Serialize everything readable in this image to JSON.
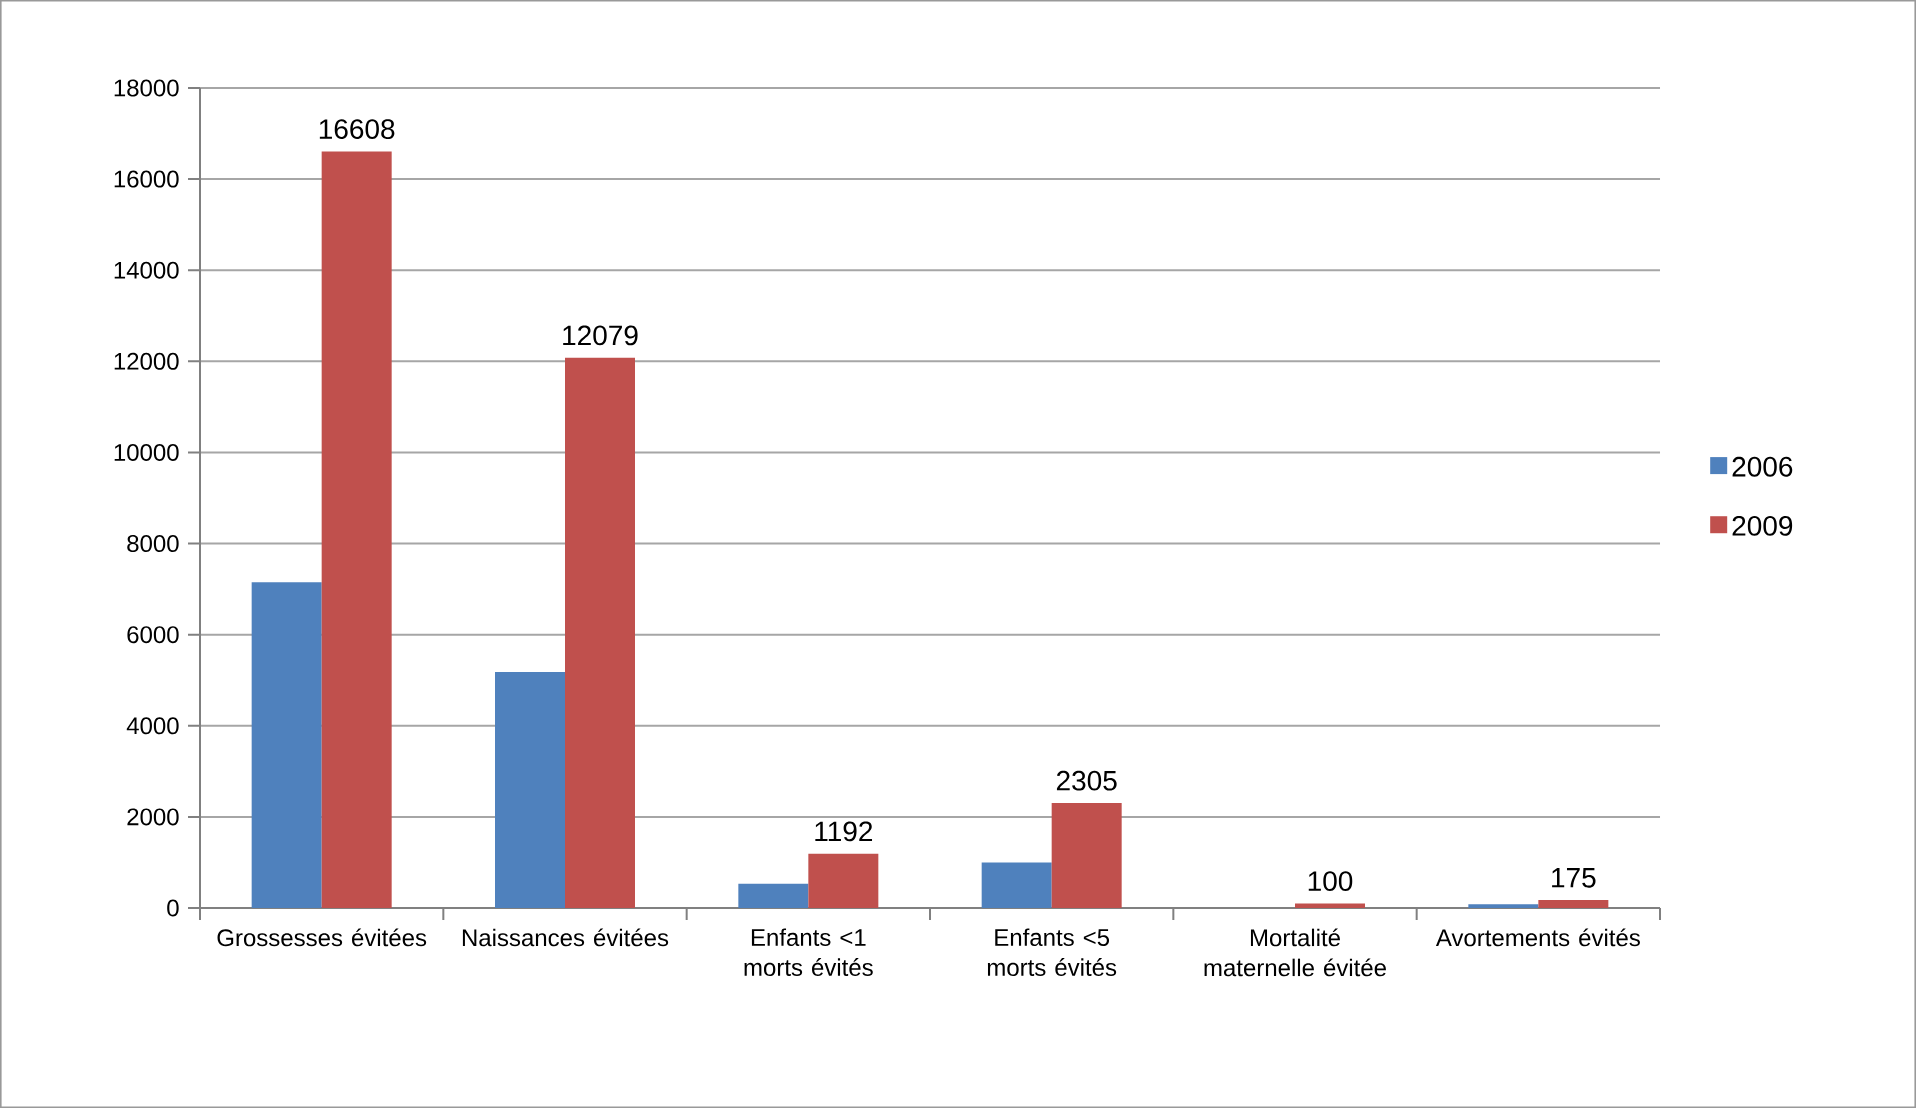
{
  "chart_data": {
    "type": "bar",
    "categories": [
      "Grossesses évitées",
      "Naissances évitées",
      "Enfants <1 morts évités",
      "Enfants <5 morts évités",
      "Mortalité maternelle évitée",
      "Avortements évités"
    ],
    "series": [
      {
        "name": "2006",
        "color": "#4f81bd",
        "values": [
          7150,
          5180,
          530,
          1000,
          0,
          80
        ]
      },
      {
        "name": "2009",
        "color": "#c0504d",
        "values": [
          16608,
          12079,
          1192,
          2305,
          100,
          175
        ],
        "value_labels": [
          "16608",
          "12079",
          "1192",
          "2305",
          "100",
          "175"
        ]
      }
    ],
    "ylim": [
      0,
      18000
    ],
    "yticks": [
      0,
      2000,
      4000,
      6000,
      8000,
      10000,
      12000,
      14000,
      16000,
      18000
    ],
    "grid": "y",
    "legend": "right"
  }
}
